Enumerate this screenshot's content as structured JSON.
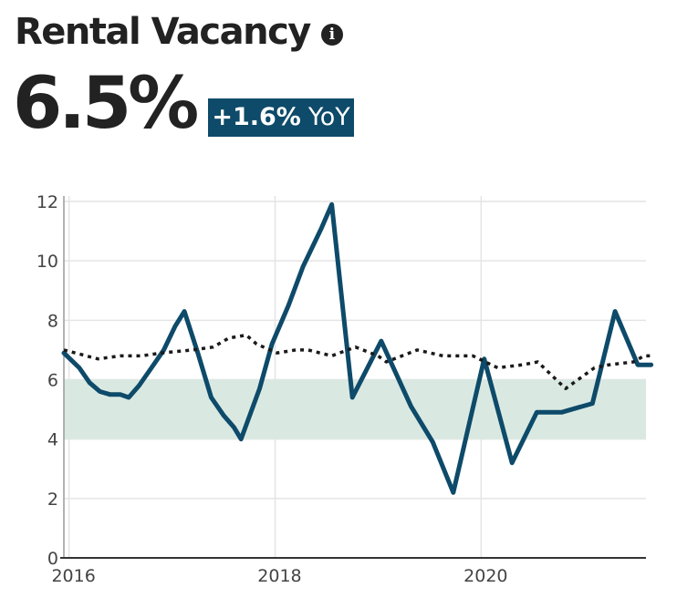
{
  "header": {
    "title": "Rental Vacancy",
    "info_icon": "info-icon",
    "value": "6.5%",
    "yoy_change": "+1.6%",
    "yoy_label": "YoY"
  },
  "colors": {
    "main_line": "#0e4a69",
    "dotted_line": "#1a1a1a",
    "band": "#d9e9e2",
    "badge_bg": "#0e4a69"
  },
  "chart_data": {
    "type": "line",
    "title": "",
    "xlabel": "",
    "ylabel": "",
    "xlim": [
      2015.95,
      2021.6
    ],
    "ylim": [
      0,
      12
    ],
    "x_ticks": [
      2016,
      2018,
      2020
    ],
    "y_ticks": [
      0,
      2,
      4,
      6,
      8,
      10,
      12
    ],
    "grid": true,
    "legend": "none",
    "band": {
      "from": 4,
      "to": 6
    },
    "series": [
      {
        "style": "solid",
        "points": [
          [
            2015.95,
            6.9
          ],
          [
            2016.1,
            6.4
          ],
          [
            2016.2,
            5.9
          ],
          [
            2016.3,
            5.6
          ],
          [
            2016.4,
            5.5
          ],
          [
            2016.5,
            5.5
          ],
          [
            2016.58,
            5.4
          ],
          [
            2016.68,
            5.8
          ],
          [
            2016.8,
            6.4
          ],
          [
            2016.92,
            7.0
          ],
          [
            2017.03,
            7.8
          ],
          [
            2017.12,
            8.3
          ],
          [
            2017.25,
            6.9
          ],
          [
            2017.38,
            5.4
          ],
          [
            2017.5,
            4.8
          ],
          [
            2017.6,
            4.4
          ],
          [
            2017.67,
            4.0
          ],
          [
            2017.85,
            5.7
          ],
          [
            2017.97,
            7.2
          ],
          [
            2018.13,
            8.5
          ],
          [
            2018.27,
            9.8
          ],
          [
            2018.45,
            11.1
          ],
          [
            2018.55,
            11.9
          ],
          [
            2018.75,
            5.4
          ],
          [
            2019.03,
            7.3
          ],
          [
            2019.32,
            5.1
          ],
          [
            2019.53,
            3.9
          ],
          [
            2019.73,
            2.2
          ],
          [
            2020.03,
            6.7
          ],
          [
            2020.3,
            3.2
          ],
          [
            2020.54,
            4.9
          ],
          [
            2020.78,
            4.9
          ],
          [
            2021.08,
            5.2
          ],
          [
            2021.3,
            8.3
          ],
          [
            2021.52,
            6.5
          ],
          [
            2021.65,
            6.5
          ]
        ]
      },
      {
        "style": "dotted",
        "points": [
          [
            2015.95,
            7.0
          ],
          [
            2016.28,
            6.7
          ],
          [
            2016.5,
            6.8
          ],
          [
            2016.7,
            6.8
          ],
          [
            2016.9,
            6.9
          ],
          [
            2017.2,
            7.0
          ],
          [
            2017.4,
            7.1
          ],
          [
            2017.55,
            7.4
          ],
          [
            2017.72,
            7.5
          ],
          [
            2017.82,
            7.2
          ],
          [
            2018.02,
            6.9
          ],
          [
            2018.2,
            7.0
          ],
          [
            2018.32,
            7.0
          ],
          [
            2018.55,
            6.8
          ],
          [
            2018.78,
            7.1
          ],
          [
            2019.0,
            6.8
          ],
          [
            2019.08,
            6.6
          ],
          [
            2019.38,
            7.0
          ],
          [
            2019.63,
            6.8
          ],
          [
            2019.92,
            6.8
          ],
          [
            2020.16,
            6.4
          ],
          [
            2020.4,
            6.5
          ],
          [
            2020.55,
            6.6
          ],
          [
            2020.82,
            5.7
          ],
          [
            2021.1,
            6.4
          ],
          [
            2021.24,
            6.5
          ],
          [
            2021.48,
            6.6
          ],
          [
            2021.58,
            6.8
          ],
          [
            2021.66,
            6.8
          ]
        ]
      }
    ]
  }
}
